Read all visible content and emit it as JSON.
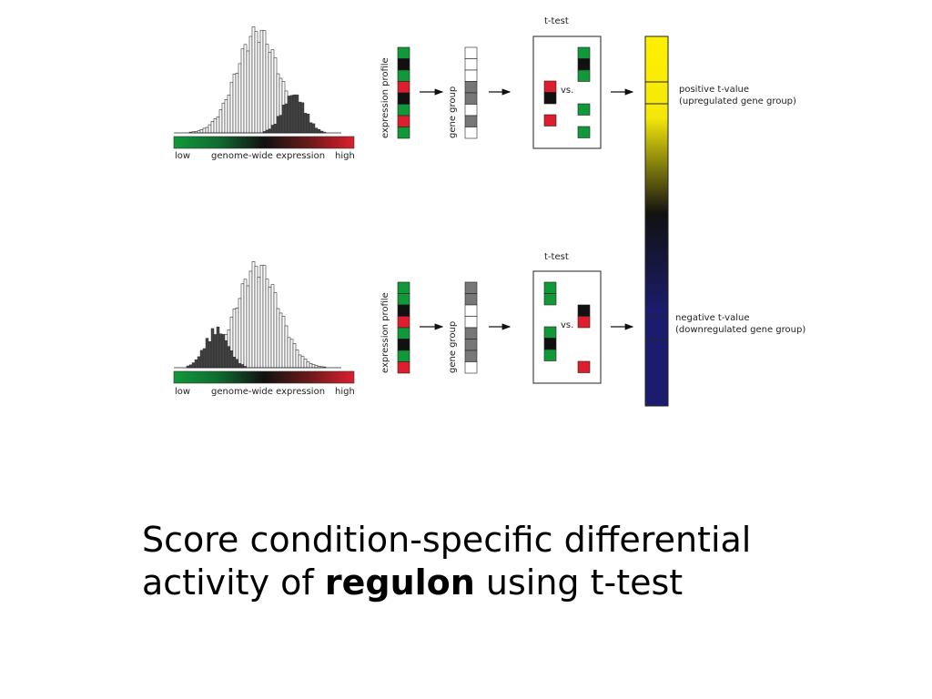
{
  "panels": [
    {
      "axis": {
        "low": "low",
        "mid": "genome-wide expression",
        "high": "high"
      },
      "profile_label": "expression profile",
      "group_label": "gene group",
      "test_label": "t-test",
      "vs_label": "vs.",
      "profile_colors": [
        "green",
        "black",
        "green",
        "red",
        "black",
        "green",
        "red",
        "green"
      ],
      "group_cells": [
        "white",
        "white",
        "white",
        "gray",
        "gray",
        "white",
        "gray",
        "white"
      ],
      "group_highlight": "shifted-high"
    },
    {
      "axis": {
        "low": "low",
        "mid": "genome-wide expression",
        "high": "high"
      },
      "profile_label": "expression profile",
      "group_label": "gene group",
      "test_label": "t-test",
      "vs_label": "vs.",
      "profile_colors": [
        "green",
        "green",
        "black",
        "red",
        "green",
        "black",
        "green",
        "red"
      ],
      "group_cells": [
        "gray",
        "gray",
        "white",
        "white",
        "gray",
        "gray",
        "gray",
        "white"
      ],
      "group_highlight": "shifted-low"
    }
  ],
  "scale": {
    "positive_label_1": "positive t-value",
    "positive_label_2": "(upregulated gene group)",
    "negative_label_1": "negative t-value",
    "negative_label_2": "(downregulated gene group)"
  },
  "colors": {
    "green": "#119939",
    "red": "#dd1e2f",
    "black": "#111111",
    "gray": "#777777",
    "yellow": "#ffef00",
    "navy": "#1c1c6e"
  },
  "caption": {
    "line1": "Score condition-specific differential",
    "line2_a": "activity of ",
    "line2_bold": "regulon",
    "line2_b": " using t-test"
  }
}
